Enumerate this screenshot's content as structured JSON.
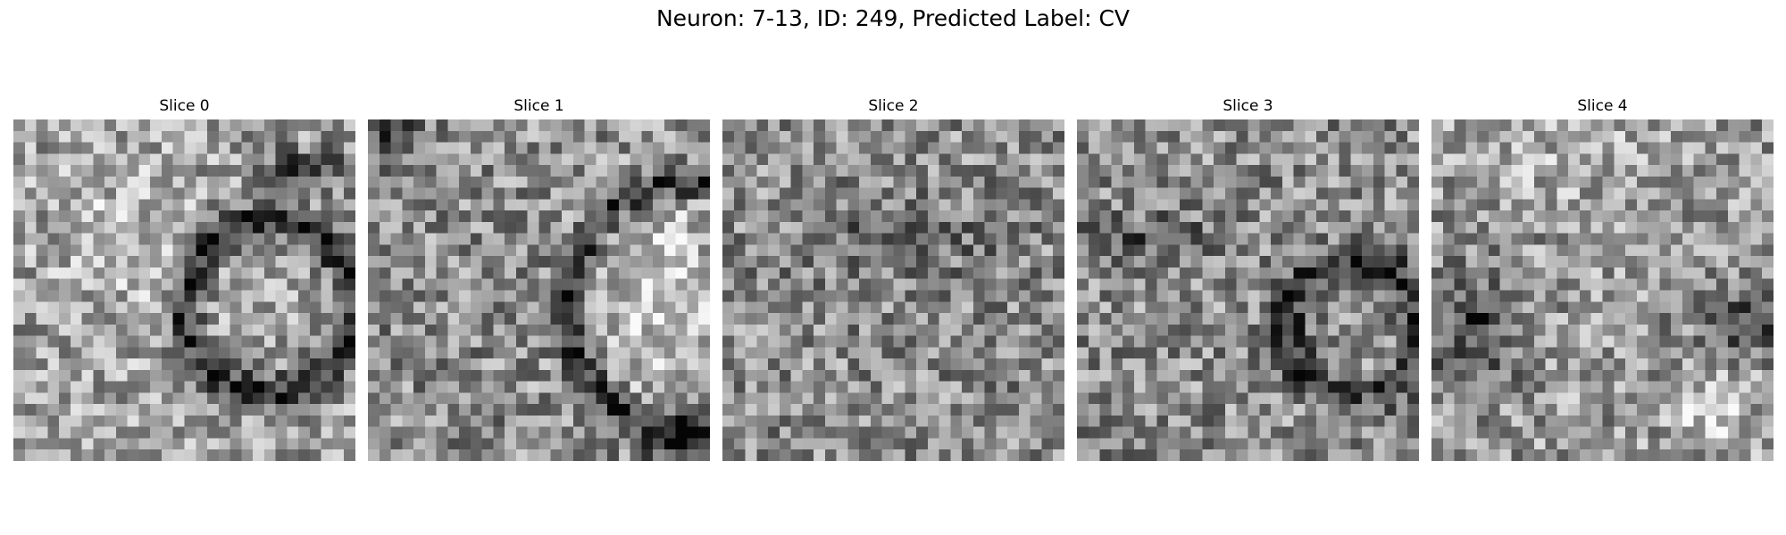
{
  "figure": {
    "title": "Neuron: 7-13, ID: 249, Predicted Label: CV"
  },
  "slices": [
    {
      "label": "Slice 0"
    },
    {
      "label": "Slice 1"
    },
    {
      "label": "Slice 2"
    },
    {
      "label": "Slice 3"
    },
    {
      "label": "Slice 4"
    }
  ],
  "colormap": "gray"
}
